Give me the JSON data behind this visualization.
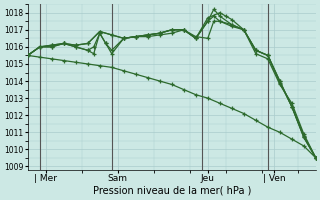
{
  "background_color": "#cce8e4",
  "grid_color": "#aacccc",
  "line_color": "#2d6a2d",
  "xlabel": "Pression niveau de la mer( hPa )",
  "ylim": [
    1008.8,
    1018.5
  ],
  "yticks": [
    1009,
    1010,
    1011,
    1012,
    1013,
    1014,
    1015,
    1016,
    1017,
    1018
  ],
  "day_labels": [
    "| Mer",
    "Sam",
    "Jeu",
    "| Ven"
  ],
  "day_positions": [
    6,
    30,
    60,
    82
  ],
  "vline_x": [
    4,
    28,
    58,
    80
  ],
  "xlim": [
    0,
    96
  ],
  "series": [
    {
      "x": [
        0,
        4,
        8,
        12,
        16,
        20,
        24,
        28,
        32,
        36,
        40,
        44,
        48,
        52,
        56,
        60,
        64,
        68,
        72,
        76,
        80,
        84,
        88,
        92,
        96
      ],
      "y": [
        1015.5,
        1015.4,
        1015.3,
        1015.2,
        1015.1,
        1015.0,
        1014.9,
        1014.8,
        1014.6,
        1014.4,
        1014.2,
        1014.0,
        1013.8,
        1013.5,
        1013.2,
        1013.0,
        1012.7,
        1012.4,
        1012.1,
        1011.7,
        1011.3,
        1011.0,
        1010.6,
        1010.2,
        1009.5
      ]
    },
    {
      "x": [
        0,
        4,
        8,
        12,
        16,
        20,
        24,
        28,
        32,
        36,
        40,
        44,
        48,
        52,
        56,
        60,
        64,
        66,
        68,
        72,
        76,
        80,
        84,
        88,
        92,
        96
      ],
      "y": [
        1015.5,
        1016.0,
        1016.0,
        1016.2,
        1016.1,
        1016.2,
        1016.9,
        1016.7,
        1016.5,
        1016.6,
        1016.6,
        1016.7,
        1016.8,
        1017.0,
        1016.5,
        1017.7,
        1018.0,
        1017.8,
        1017.6,
        1017.0,
        1015.8,
        1015.5,
        1013.9,
        1012.5,
        1010.8,
        1009.5
      ]
    },
    {
      "x": [
        0,
        4,
        8,
        12,
        16,
        20,
        24,
        28,
        32,
        36,
        40,
        44,
        48,
        52,
        56,
        60,
        62,
        64,
        68,
        72,
        76,
        80,
        84,
        88,
        92,
        96
      ],
      "y": [
        1015.5,
        1016.0,
        1016.0,
        1016.2,
        1016.1,
        1016.2,
        1016.9,
        1016.7,
        1016.5,
        1016.6,
        1016.7,
        1016.8,
        1017.0,
        1017.0,
        1016.5,
        1017.5,
        1018.2,
        1017.8,
        1017.3,
        1017.0,
        1015.6,
        1015.3,
        1013.8,
        1012.7,
        1010.9,
        1009.5
      ]
    },
    {
      "x": [
        0,
        4,
        8,
        12,
        16,
        20,
        22,
        24,
        26,
        28,
        32,
        36,
        40,
        44,
        48,
        52,
        56,
        60,
        62,
        64,
        68,
        72,
        76,
        80,
        84,
        88,
        92,
        96
      ],
      "y": [
        1015.5,
        1016.0,
        1016.1,
        1016.2,
        1016.0,
        1015.8,
        1016.0,
        1016.8,
        1016.2,
        1015.8,
        1016.5,
        1016.6,
        1016.7,
        1016.8,
        1017.0,
        1017.0,
        1016.5,
        1017.5,
        1017.8,
        1017.5,
        1017.3,
        1017.0,
        1015.8,
        1015.5,
        1014.0,
        1012.5,
        1010.7,
        1009.5
      ]
    },
    {
      "x": [
        0,
        4,
        8,
        12,
        16,
        20,
        22,
        24,
        26,
        28,
        32,
        36,
        40,
        44,
        48,
        52,
        56,
        60,
        62,
        64,
        68,
        72,
        76,
        80,
        84,
        88,
        92,
        96
      ],
      "y": [
        1015.5,
        1016.0,
        1016.1,
        1016.2,
        1016.0,
        1015.8,
        1015.6,
        1016.8,
        1016.2,
        1015.6,
        1016.5,
        1016.6,
        1016.7,
        1016.8,
        1017.0,
        1017.0,
        1016.6,
        1016.5,
        1017.5,
        1017.5,
        1017.2,
        1017.0,
        1015.8,
        1015.5,
        1014.0,
        1012.5,
        1010.7,
        1009.5
      ]
    }
  ]
}
